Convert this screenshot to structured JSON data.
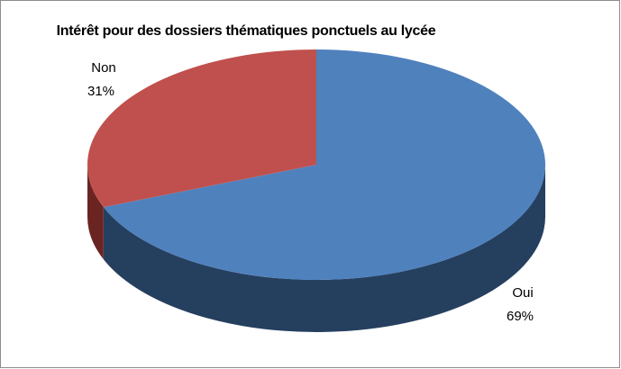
{
  "chart_data": {
    "type": "pie3d",
    "title": "Intérêt pour des dossiers thématiques ponctuels au lycée",
    "categories": [
      "Oui",
      "Non"
    ],
    "values": [
      69,
      31
    ],
    "value_labels": [
      "69%",
      "31%"
    ],
    "colors": [
      "#4f81bd",
      "#c0504d"
    ],
    "side_colors": [
      "#253f5f",
      "#6a2523"
    ]
  }
}
